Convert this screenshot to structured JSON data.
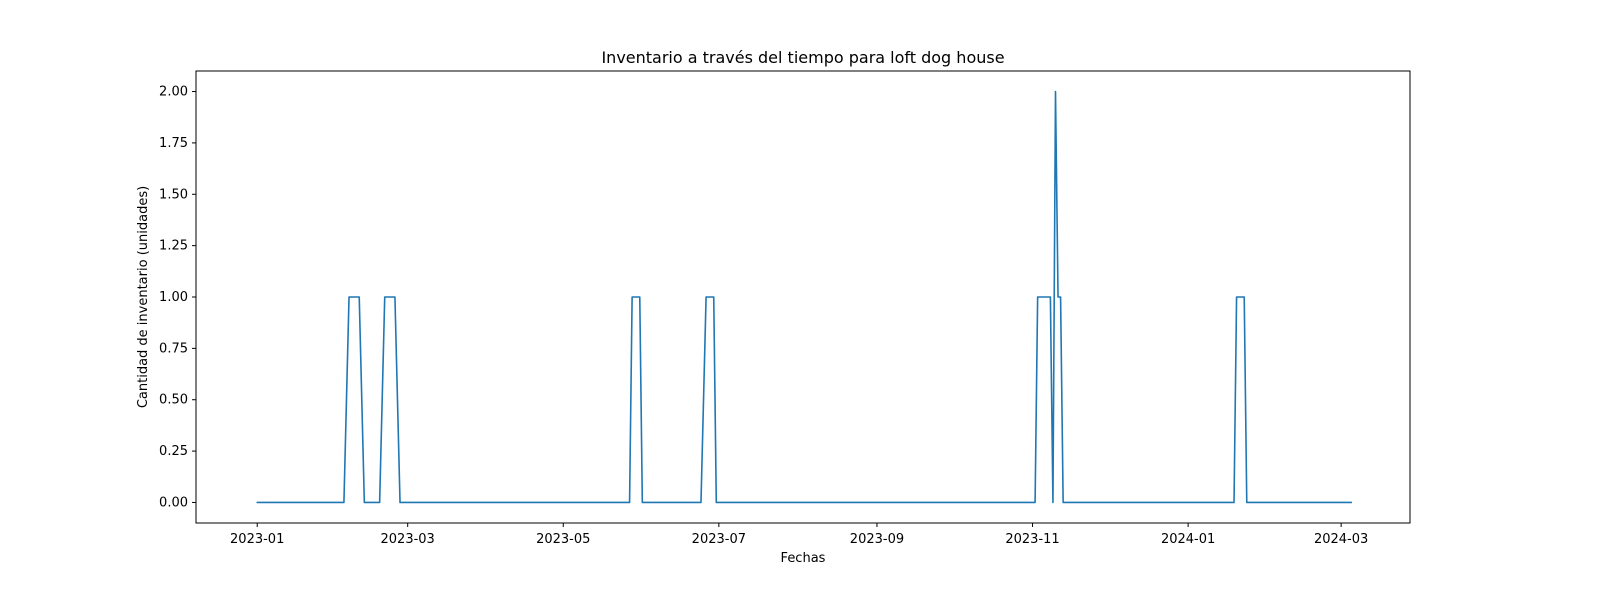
{
  "chart_data": {
    "type": "line",
    "title": "Inventario a través del tiempo para loft dog house",
    "xlabel": "Fechas",
    "ylabel": "Cantidad de inventario (unidades)",
    "xlim": [
      "2022-12-08",
      "2024-03-28"
    ],
    "ylim": [
      -0.1,
      2.1
    ],
    "grid": false,
    "x_ticks": [
      "2023-01",
      "2023-03",
      "2023-05",
      "2023-07",
      "2023-09",
      "2023-11",
      "2024-01",
      "2024-03"
    ],
    "y_ticks": [
      "0.00",
      "0.25",
      "0.50",
      "0.75",
      "1.00",
      "1.25",
      "1.50",
      "1.75",
      "2.00"
    ],
    "series": [
      {
        "color": "#1f77b4",
        "x": [
          "2023-01-01",
          "2023-02-04",
          "2023-02-06",
          "2023-02-10",
          "2023-02-12",
          "2023-02-18",
          "2023-02-20",
          "2023-02-24",
          "2023-02-26",
          "2023-05-27",
          "2023-05-28",
          "2023-05-31",
          "2023-06-01",
          "2023-06-24",
          "2023-06-26",
          "2023-06-29",
          "2023-06-30",
          "2023-11-02",
          "2023-11-03",
          "2023-11-08",
          "2023-11-09",
          "2023-11-10",
          "2023-11-11",
          "2023-11-12",
          "2023-11-13",
          "2023-11-14",
          "2024-01-19",
          "2024-01-20",
          "2024-01-23",
          "2024-01-24",
          "2024-03-05"
        ],
        "y": [
          0,
          0,
          1,
          1,
          0,
          0,
          1,
          1,
          0,
          0,
          1,
          1,
          0,
          0,
          1,
          1,
          0,
          0,
          1,
          1,
          0,
          2,
          1,
          1,
          0,
          0,
          0,
          1,
          1,
          0,
          0
        ]
      }
    ]
  }
}
